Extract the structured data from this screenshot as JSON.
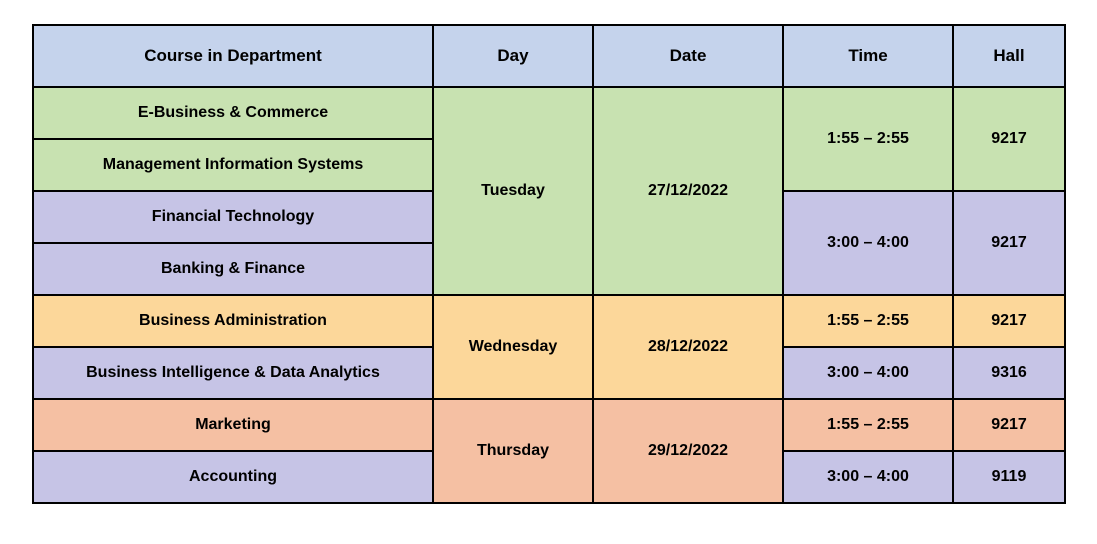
{
  "colors": {
    "header_bg": "#c5d3ec",
    "green_bg": "#c8e2b1",
    "purple_bg": "#c6c4e6",
    "orange_bg": "#fcd79a",
    "peach_bg": "#f5c0a3",
    "border": "#000000",
    "text": "#000000"
  },
  "columns": {
    "course": "Course in Department",
    "day": "Day",
    "date": "Date",
    "time": "Time",
    "hall": "Hall"
  },
  "days": [
    {
      "day": "Tuesday",
      "date": "27/12/2022"
    },
    {
      "day": "Wednesday",
      "date": "28/12/2022"
    },
    {
      "day": "Thursday",
      "date": "29/12/2022"
    }
  ],
  "slots": {
    "early": {
      "time": "1:55 – 2:55",
      "hall_default": "9217"
    },
    "late": {
      "time": "3:00 – 4:00"
    }
  },
  "courses": {
    "r0": "E-Business & Commerce",
    "r1": "Management Information Systems",
    "r2": "Financial Technology",
    "r3": "Banking & Finance",
    "r4": "Business Administration",
    "r5": "Business Intelligence & Data Analytics",
    "r6": "Marketing",
    "r7": "Accounting"
  },
  "halls": {
    "r01": "9217",
    "r23": "9217",
    "r4": "9217",
    "r5": "9316",
    "r6": "9217",
    "r7": "9119"
  }
}
